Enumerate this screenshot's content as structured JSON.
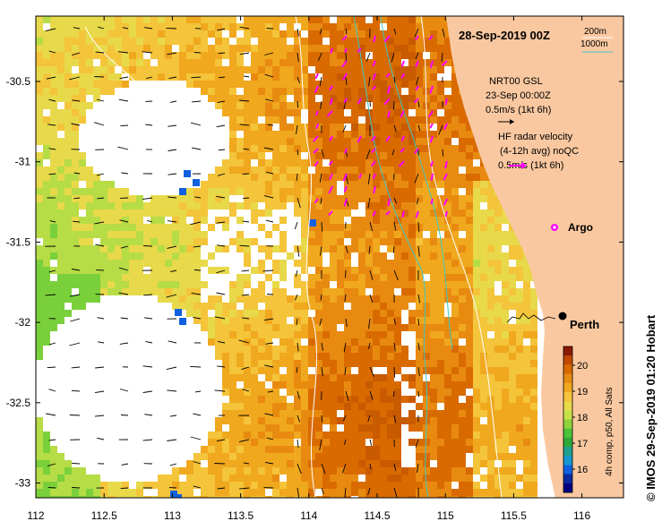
{
  "map": {
    "date_title": "28-Sep-2019 00Z",
    "contour_legend": {
      "label_200": "200m",
      "label_1000": "1000m"
    },
    "model_legend": {
      "line1": "NRT00 GSL",
      "line2": "23-Sep 00:00Z",
      "scale": "0.5m/s (1kt 6h)"
    },
    "radar_legend": {
      "line1": "HF radar velocity",
      "line2": "(4-12h avg) noQC",
      "scale": "0.5m/s (1kt 6h)"
    },
    "argo_label": "Argo",
    "city_label": "Perth",
    "credit": "© IMOS 29-Sep-2019 01:20 Hobart",
    "colorbar": {
      "caption": "4h comp, p50, All Sats",
      "ticks": [
        "20",
        "19",
        "18",
        "17",
        "16"
      ],
      "colors": [
        "#8b1a00",
        "#c24a00",
        "#d96a00",
        "#e88a10",
        "#f0a81e",
        "#f4c43a",
        "#e8d94a",
        "#c7e04a",
        "#8fd23a",
        "#4cc23a",
        "#2faa3a",
        "#1fa090",
        "#1898d0",
        "#1060e0",
        "#0a2aa0",
        "#000080"
      ]
    },
    "axes": {
      "x_ticks": [
        "112",
        "112.5",
        "113",
        "113.5",
        "114",
        "114.5",
        "115",
        "115.5",
        "116"
      ],
      "y_ticks": [
        "-30.5",
        "-31",
        "-31.5",
        "-32",
        "-32.5",
        "-33"
      ]
    },
    "colors": {
      "land": "#fac8a0",
      "contour_200": "#ffffff",
      "contour_1000": "#40c8c0",
      "radar_arrow": "#ff00ff",
      "city": "#000000"
    }
  }
}
